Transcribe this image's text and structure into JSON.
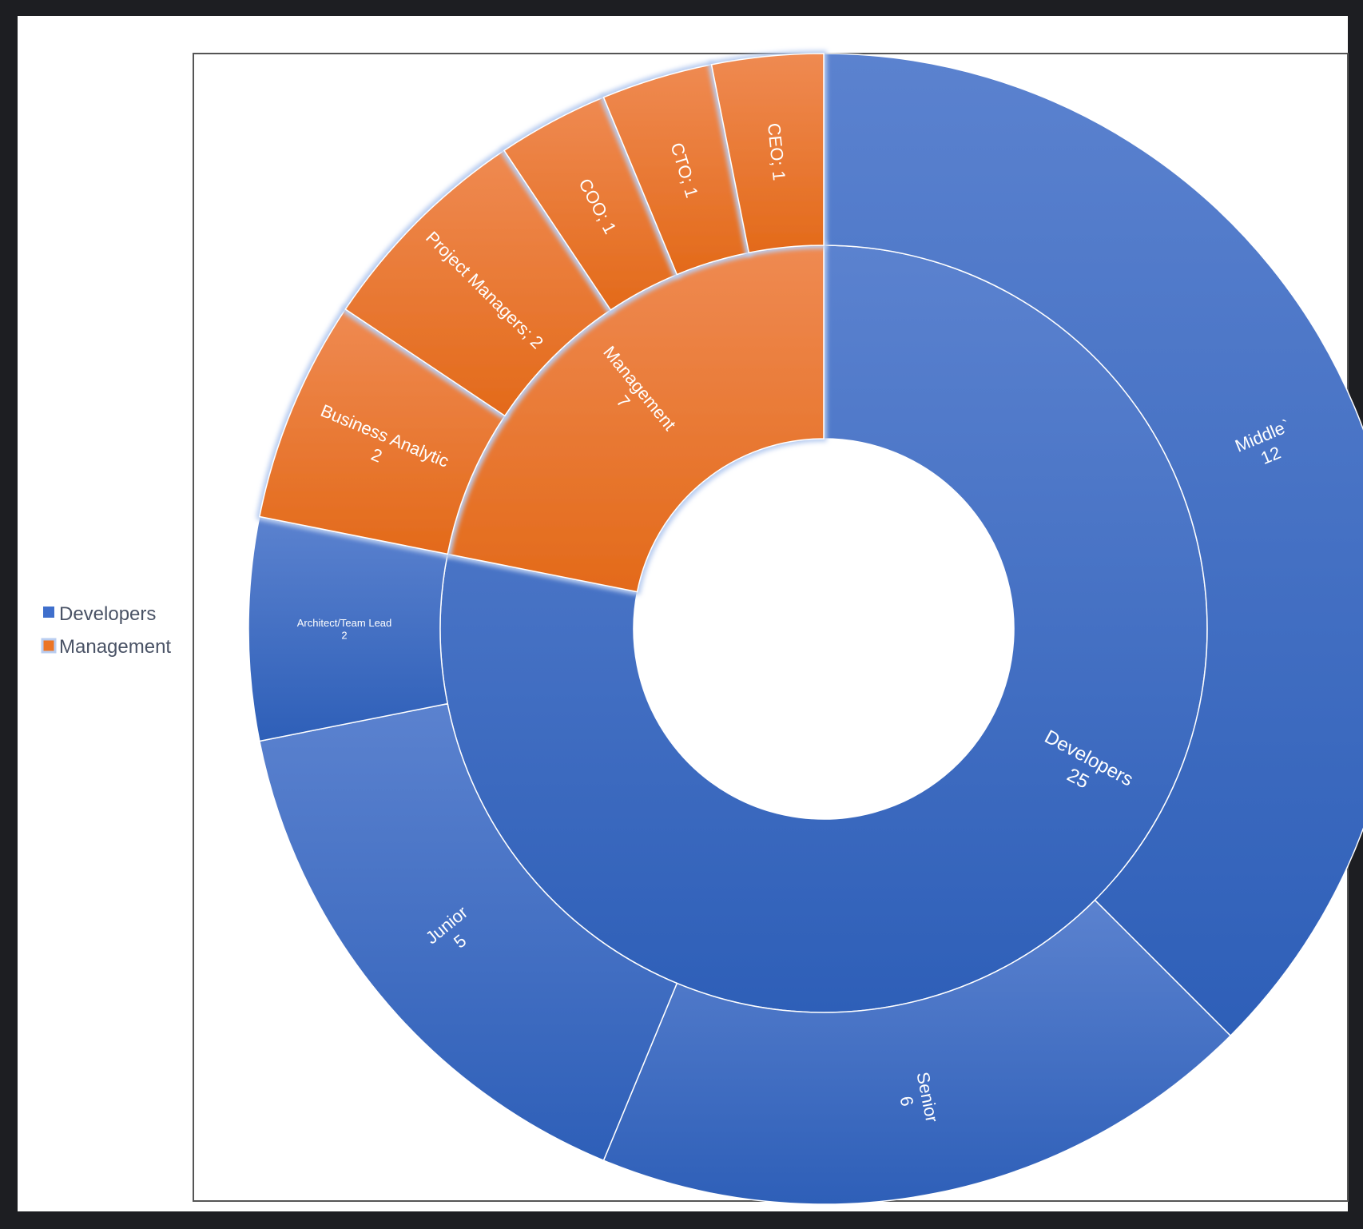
{
  "colors": {
    "page_bg": "#1d1e22",
    "card_bg": "#ffffff",
    "frame_border": "#555555",
    "developers": "#3f6fcc",
    "developers_light": "#5b82cf",
    "developers_dark": "#2e5fb8",
    "management": "#ec7424",
    "management_light": "#ef8a52",
    "management_dark": "#e36a1a",
    "segment_divider": "#ffffff",
    "highlight_glow": "#b9cdf0"
  },
  "legend": {
    "items": [
      {
        "label": "Developers",
        "color": "#3f6fcc",
        "icon": "square-swatch-icon"
      },
      {
        "label": "Management",
        "color": "#ec7424",
        "icon": "square-swatch-icon"
      }
    ]
  },
  "chart_data": {
    "type": "sunburst",
    "title": "",
    "legend_position": "left",
    "highlighted": "Management",
    "categories": [
      {
        "name": "Developers",
        "value": 25,
        "label": "Developers",
        "value_label": "25",
        "children": [
          {
            "name": "Middle",
            "value": 12,
            "label": "Middle`",
            "value_label": "12"
          },
          {
            "name": "Senior",
            "value": 6,
            "label": "Senior",
            "value_label": "6"
          },
          {
            "name": "Junior",
            "value": 5,
            "label": "Junior",
            "value_label": "5"
          },
          {
            "name": "Architect/Team Lead",
            "value": 2,
            "label": "Architect/Team Lead",
            "value_label": "2"
          }
        ]
      },
      {
        "name": "Management",
        "value": 7,
        "label": "Management",
        "value_label": "7",
        "children": [
          {
            "name": "Business Analytic",
            "value": 2,
            "label": "Business Analytic",
            "value_label": "2"
          },
          {
            "name": "Project Managers",
            "value": 2,
            "label": "Project Managers; 2",
            "value_label": ""
          },
          {
            "name": "COO",
            "value": 1,
            "label": "COO; 1",
            "value_label": ""
          },
          {
            "name": "CTO",
            "value": 1,
            "label": "CTO; 1",
            "value_label": ""
          },
          {
            "name": "CEO",
            "value": 1,
            "label": "CEO; 1",
            "value_label": ""
          }
        ]
      }
    ]
  }
}
